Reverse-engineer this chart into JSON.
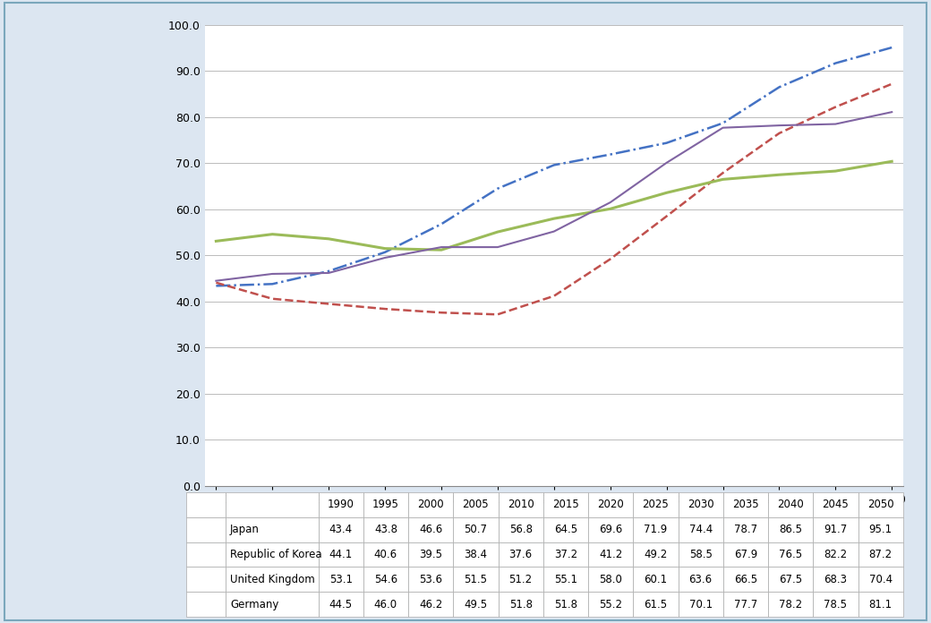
{
  "years": [
    1990,
    1995,
    2000,
    2005,
    2010,
    2015,
    2020,
    2025,
    2030,
    2035,
    2040,
    2045,
    2050
  ],
  "series_order": [
    "Japan",
    "Republic of Korea",
    "United Kingdom",
    "Germany"
  ],
  "series": {
    "Japan": {
      "values": [
        43.4,
        43.8,
        46.6,
        50.7,
        56.8,
        64.5,
        69.6,
        71.9,
        74.4,
        78.7,
        86.5,
        91.7,
        95.1
      ],
      "color": "#4472C4",
      "linestyle": "-.",
      "linewidth": 1.8,
      "dashes": null
    },
    "Republic of Korea": {
      "values": [
        44.1,
        40.6,
        39.5,
        38.4,
        37.6,
        37.2,
        41.2,
        49.2,
        58.5,
        67.9,
        76.5,
        82.2,
        87.2
      ],
      "color": "#C0504D",
      "linestyle": "--",
      "linewidth": 1.8,
      "dashes": [
        4,
        2
      ]
    },
    "United Kingdom": {
      "values": [
        53.1,
        54.6,
        53.6,
        51.5,
        51.2,
        55.1,
        58.0,
        60.1,
        63.6,
        66.5,
        67.5,
        68.3,
        70.4
      ],
      "color": "#9BBB59",
      "linestyle": "-",
      "linewidth": 2.2,
      "dashes": null
    },
    "Germany": {
      "values": [
        44.5,
        46.0,
        46.2,
        49.5,
        51.8,
        51.8,
        55.2,
        61.5,
        70.1,
        77.7,
        78.2,
        78.5,
        81.1
      ],
      "color": "#8064A2",
      "linestyle": "-",
      "linewidth": 1.5,
      "dashes": null
    }
  },
  "ylim": [
    0.0,
    100.0
  ],
  "ytick_step": 10.0,
  "background_color": "#DCE6F1",
  "plot_bg_color": "#FFFFFF",
  "grid_color": "#BBBBBB",
  "border_color": "#7BA7BC",
  "table_border_color": "#AAAAAA",
  "font_size_ticks": 9,
  "font_size_table": 8.5
}
